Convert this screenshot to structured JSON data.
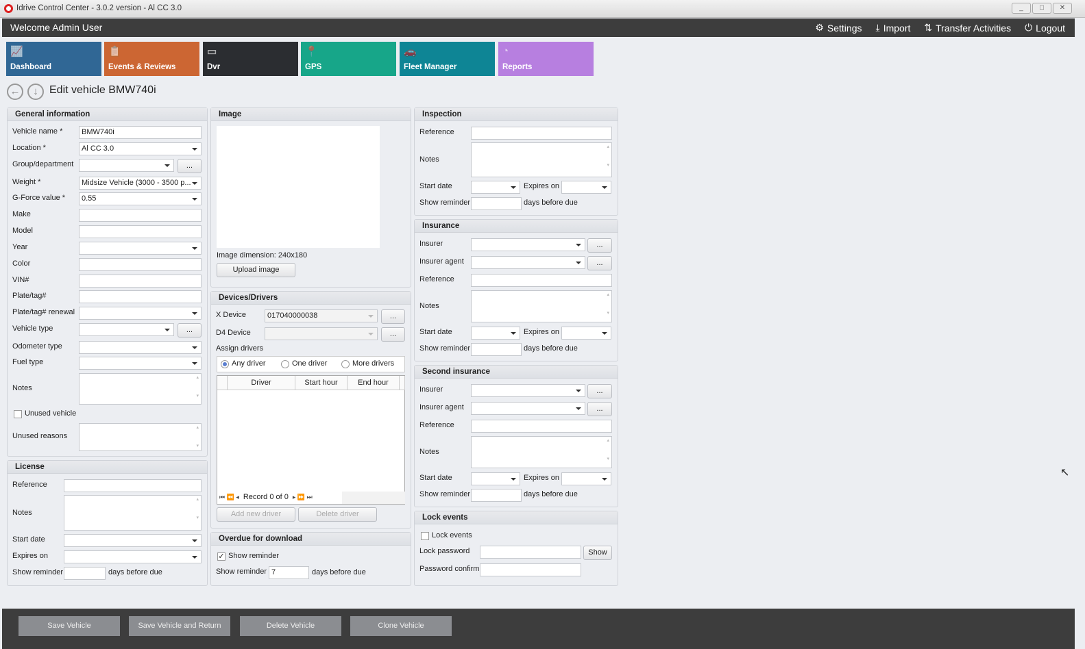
{
  "window": {
    "title": "Idrive Control Center - 3.0.2 version - Al CC 3.0",
    "minimize": "_",
    "maximize": "□",
    "close": "✕"
  },
  "header": {
    "welcome": "Welcome Admin User",
    "settings": "Settings",
    "import": "Import",
    "transfer": "Transfer Activities",
    "logout": "Logout"
  },
  "tiles": [
    {
      "label": "Dashboard",
      "color": "#306795",
      "icon": "chart-icon"
    },
    {
      "label": "Events & Reviews",
      "color": "#cc6633",
      "icon": "clipboard-icon"
    },
    {
      "label": "Dvr",
      "color": "#2b2d31",
      "icon": "dvr-icon"
    },
    {
      "label": "GPS",
      "color": "#17a689",
      "icon": "map-pin-icon"
    },
    {
      "label": "Fleet Manager",
      "color": "#0e8595",
      "icon": "cars-icon"
    },
    {
      "label": "Reports",
      "color": "#b77fe0",
      "icon": "pie-chart-icon"
    }
  ],
  "page": {
    "title": "Edit vehicle BMW740i"
  },
  "general": {
    "title": "General information",
    "vehicle_name_label": "Vehicle name *",
    "vehicle_name": "BMW740i",
    "location_label": "Location *",
    "location": "Al CC 3.0",
    "group_label": "Group/department",
    "weight_label": "Weight *",
    "weight": "Midsize Vehicle (3000 - 3500 p...",
    "gforce_label": "G-Force value *",
    "gforce": "0.55",
    "make_label": "Make",
    "model_label": "Model",
    "year_label": "Year",
    "color_label": "Color",
    "vin_label": "VIN#",
    "plate_label": "Plate/tag#",
    "plate_renewal_label": "Plate/tag# renewal",
    "vehicle_type_label": "Vehicle type",
    "odometer_label": "Odometer type",
    "fuel_label": "Fuel type",
    "notes_label": "Notes",
    "unused_label": "Unused vehicle",
    "unused_reasons_label": "Unused reasons",
    "more": "..."
  },
  "license": {
    "title": "License",
    "reference": "Reference",
    "notes": "Notes",
    "start_date": "Start date",
    "expires_on": "Expires on",
    "show_reminder": "Show reminder",
    "days_before_due": "days before due"
  },
  "image": {
    "title": "Image",
    "dimension_label": "Image dimension:",
    "dimension": "240x180",
    "upload": "Upload image"
  },
  "devices": {
    "title": "Devices/Drivers",
    "x_device_label": "X Device",
    "x_device": "017040000038",
    "d4_device_label": "D4 Device",
    "assign_label": "Assign drivers",
    "radios": [
      "Any driver",
      "One driver",
      "More drivers"
    ],
    "selected": "Any driver",
    "columns": [
      "Driver",
      "Start hour",
      "End hour"
    ],
    "record": "Record 0 of 0",
    "add": "Add new driver",
    "delete": "Delete driver"
  },
  "overdue": {
    "title": "Overdue for download",
    "show_reminder_check": "Show reminder",
    "checked": true,
    "show_reminder_label": "Show reminder",
    "days": "7",
    "days_before_due": "days before due"
  },
  "inspection": {
    "title": "Inspection",
    "reference": "Reference",
    "notes": "Notes",
    "start_date": "Start date",
    "expires_on": "Expires on",
    "show_reminder": "Show reminder",
    "days_before_due": "days before due"
  },
  "insurance": {
    "title": "Insurance",
    "insurer": "Insurer",
    "agent": "Insurer agent",
    "reference": "Reference",
    "notes": "Notes",
    "start_date": "Start date",
    "expires_on": "Expires on",
    "show_reminder": "Show reminder",
    "days_before_due": "days before due"
  },
  "second_insurance": {
    "title": "Second insurance",
    "insurer": "Insurer",
    "agent": "Insurer agent",
    "reference": "Reference",
    "notes": "Notes",
    "start_date": "Start date",
    "expires_on": "Expires on",
    "show_reminder": "Show reminder",
    "days_before_due": "days before due"
  },
  "lock": {
    "title": "Lock events",
    "lock_check": "Lock events",
    "password": "Lock password",
    "show": "Show",
    "confirm": "Password confirm"
  },
  "footer": {
    "save": "Save Vehicle",
    "save_return": "Save Vehicle and Return",
    "delete": "Delete Vehicle",
    "clone": "Clone Vehicle"
  }
}
